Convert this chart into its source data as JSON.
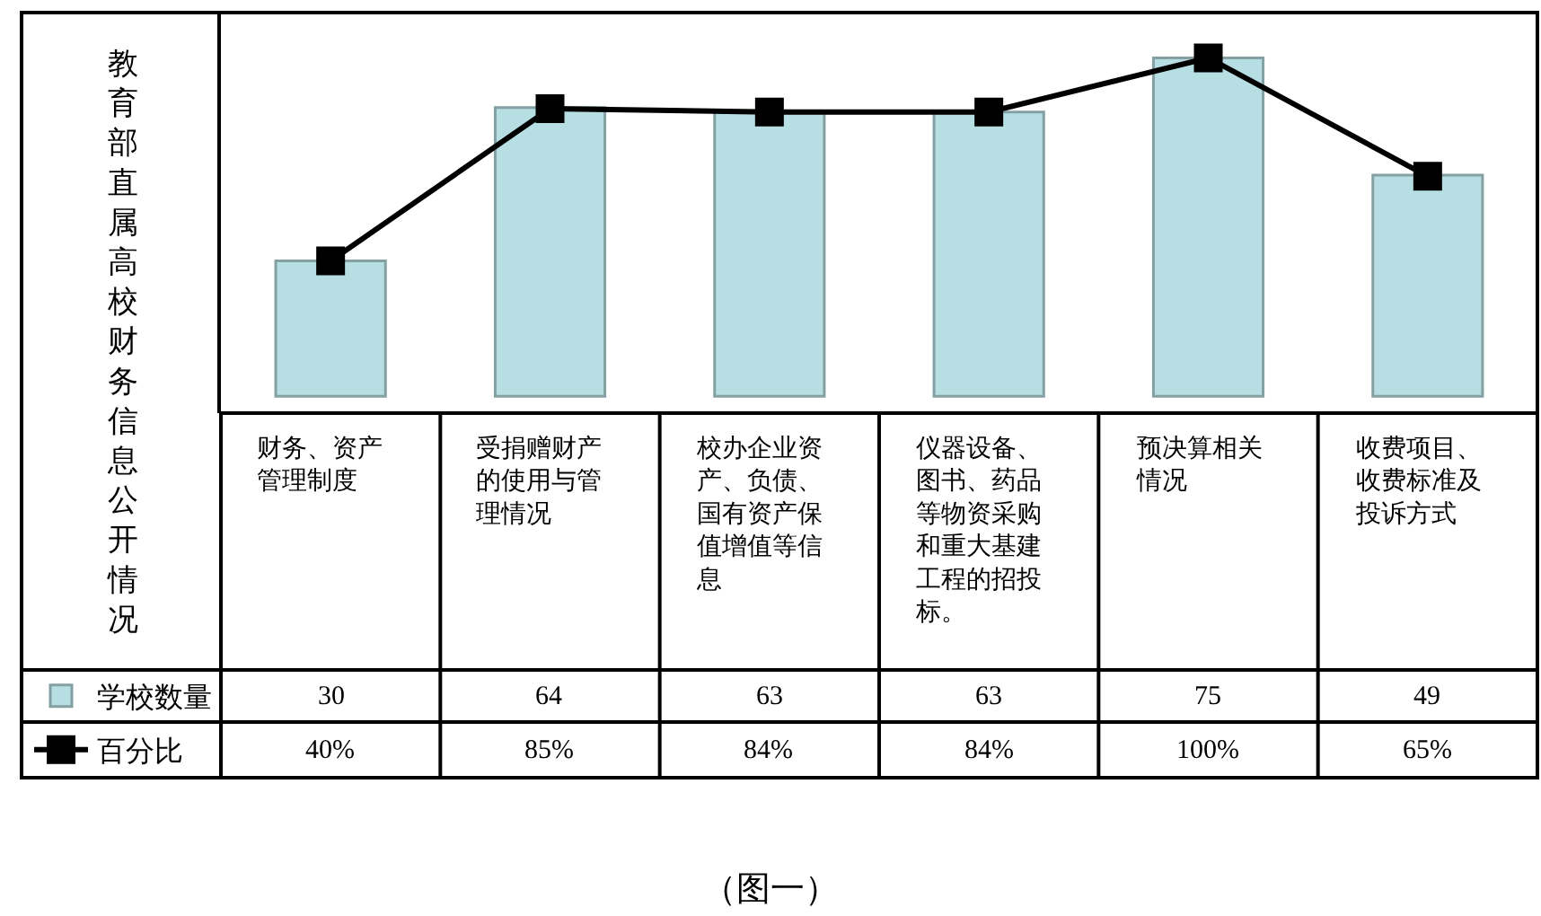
{
  "chart_data": {
    "type": "bar",
    "title": "教育部直属高校财务信息公开情况",
    "annotations": [
      "（图一）"
    ],
    "categories": [
      "财务、资产管理制度",
      "受捐赠财产的使用与管理情况",
      "校办企业资产、负债、国有资产保值增值等信息",
      "仪器设备、图书、药品等物资采购和重大基建工程的招投标。",
      "预决算相关情况",
      "收费项目、收费标准及投诉方式"
    ],
    "series": [
      {
        "name": "学校数量",
        "color": "#b7dfe3",
        "values": [
          30,
          64,
          63,
          63,
          75,
          49
        ],
        "value_labels": [
          "30",
          "64",
          "63",
          "63",
          "75",
          "49"
        ]
      },
      {
        "name": "百分比",
        "type": "line",
        "axis": "y2",
        "color": "#000000",
        "values": [
          40,
          85,
          84,
          84,
          100,
          65
        ],
        "value_labels": [
          "40%",
          "85%",
          "84%",
          "84%",
          "100%",
          "65%"
        ]
      }
    ],
    "marker": "square",
    "legend": "bottom left",
    "tick_labels": "x"
  }
}
